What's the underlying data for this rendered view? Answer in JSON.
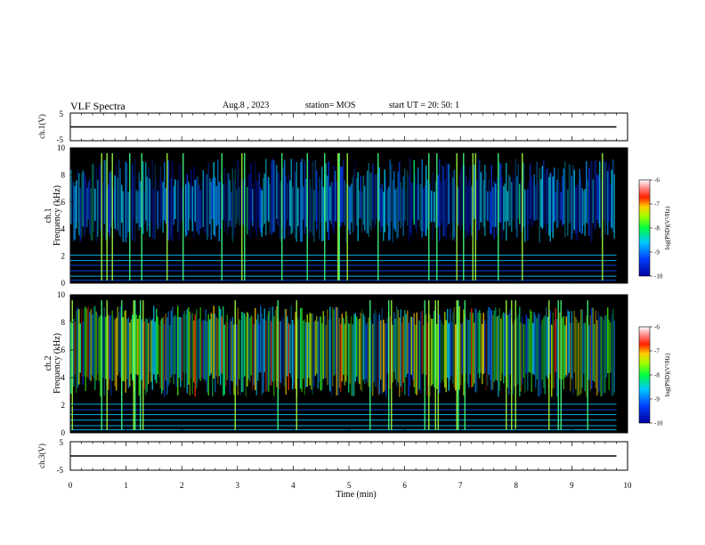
{
  "header": {
    "title": "VLF Spectra",
    "date": "Aug.8  , 2023",
    "station": "station= MOS",
    "start": "start  UT  =   20: 50: 1"
  },
  "chart_data": [
    {
      "type": "line",
      "panel": "ch1-waveform",
      "ylabel": "ch.1(V)",
      "ylim": [
        -5,
        5
      ],
      "yticks": [
        "5",
        "-5"
      ],
      "series": [
        {
          "x": [
            0,
            9.8
          ],
          "values": [
            0,
            0
          ]
        }
      ]
    },
    {
      "type": "heatmap",
      "panel": "ch1-spectrogram",
      "ylabel": "ch.1\nFrequency (kHz)",
      "ylim": [
        0,
        10
      ],
      "yticks": [
        "0",
        "2",
        "4",
        "6",
        "8",
        "10"
      ],
      "xlim": [
        0,
        10
      ],
      "data_extent_x": [
        0,
        9.8
      ],
      "colorbar": {
        "label": "log(PSD)(V²/Hz)",
        "range": [
          -10,
          -6
        ],
        "ticks": [
          "-6",
          "-7",
          "-8",
          "-9",
          "-10"
        ]
      }
    },
    {
      "type": "heatmap",
      "panel": "ch2-spectrogram",
      "ylabel": "ch.2\nFrequency (kHz)",
      "ylim": [
        0,
        10
      ],
      "yticks": [
        "0",
        "2",
        "4",
        "6",
        "8",
        "10"
      ],
      "xlim": [
        0,
        10
      ],
      "data_extent_x": [
        0,
        9.8
      ],
      "colorbar": {
        "label": "log(PSD)(V²/Hz)",
        "range": [
          -10,
          -6
        ],
        "ticks": [
          "-6",
          "-7",
          "-8",
          "-9",
          "-10"
        ]
      }
    },
    {
      "type": "line",
      "panel": "ch3-waveform",
      "ylabel": "ch.3(V)",
      "ylim": [
        -5,
        5
      ],
      "yticks": [
        "5",
        "-5"
      ],
      "xlabel": "Time  (min)",
      "xlim": [
        0,
        10
      ],
      "xticks": [
        "0",
        "1",
        "2",
        "3",
        "4",
        "5",
        "6",
        "7",
        "8",
        "9",
        "10"
      ],
      "series": [
        {
          "x": [
            0,
            9.8
          ],
          "values": [
            0,
            0
          ]
        }
      ]
    }
  ],
  "colors": {
    "frame": "#000000",
    "spectrogram_bg": "#000000"
  }
}
